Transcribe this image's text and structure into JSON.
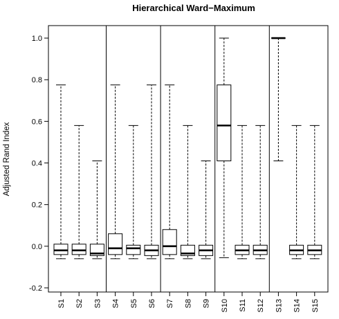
{
  "chart_data": {
    "type": "boxplot",
    "title": "Hierarchical Ward−Maximum",
    "ylabel": "Adjusted Rand Index",
    "xlabel": "",
    "ylim": [
      -0.22,
      1.06
    ],
    "yticks": [
      -0.2,
      0.0,
      0.2,
      0.4,
      0.6,
      0.8,
      1.0
    ],
    "ytick_labels": [
      "-0.2",
      "0.0",
      "0.2",
      "0.4",
      "0.6",
      "0.8",
      "1.0"
    ],
    "group_separators_after": [
      "S3",
      "S6",
      "S9",
      "S12"
    ],
    "categories": [
      "S1",
      "S2",
      "S3",
      "S4",
      "S5",
      "S6",
      "S7",
      "S8",
      "S9",
      "S10",
      "S11",
      "S12",
      "S13",
      "S14",
      "S15"
    ],
    "boxes": [
      {
        "name": "S1",
        "min": -0.06,
        "q1": -0.04,
        "median": -0.02,
        "q3": 0.01,
        "max": 0.775
      },
      {
        "name": "S2",
        "min": -0.06,
        "q1": -0.04,
        "median": -0.02,
        "q3": 0.01,
        "max": 0.58
      },
      {
        "name": "S3",
        "min": -0.06,
        "q1": -0.045,
        "median": -0.035,
        "q3": 0.01,
        "max": 0.41
      },
      {
        "name": "S4",
        "min": -0.06,
        "q1": -0.04,
        "median": -0.01,
        "q3": 0.06,
        "max": 0.775
      },
      {
        "name": "S5",
        "min": -0.06,
        "q1": -0.04,
        "median": -0.01,
        "q3": 0.005,
        "max": 0.58
      },
      {
        "name": "S6",
        "min": -0.06,
        "q1": -0.045,
        "median": -0.02,
        "q3": 0.005,
        "max": 0.775
      },
      {
        "name": "S7",
        "min": -0.06,
        "q1": -0.04,
        "median": 0.0,
        "q3": 0.08,
        "max": 0.775
      },
      {
        "name": "S8",
        "min": -0.06,
        "q1": -0.045,
        "median": -0.035,
        "q3": 0.005,
        "max": 0.58
      },
      {
        "name": "S9",
        "min": -0.06,
        "q1": -0.045,
        "median": -0.02,
        "q3": 0.005,
        "max": 0.41
      },
      {
        "name": "S10",
        "min": -0.055,
        "q1": 0.41,
        "median": 0.58,
        "q3": 0.775,
        "max": 1.0
      },
      {
        "name": "S11",
        "min": -0.06,
        "q1": -0.04,
        "median": -0.02,
        "q3": 0.005,
        "max": 0.58
      },
      {
        "name": "S12",
        "min": -0.06,
        "q1": -0.04,
        "median": -0.02,
        "q3": 0.005,
        "max": 0.58
      },
      {
        "name": "S13",
        "min": 0.41,
        "q1": 1.0,
        "median": 1.0,
        "q3": 1.0,
        "max": 1.0
      },
      {
        "name": "S14",
        "min": -0.06,
        "q1": -0.04,
        "median": -0.02,
        "q3": 0.005,
        "max": 0.58
      },
      {
        "name": "S15",
        "min": -0.06,
        "q1": -0.04,
        "median": -0.02,
        "q3": 0.005,
        "max": 0.58
      }
    ],
    "grid": false,
    "legend": "none"
  }
}
